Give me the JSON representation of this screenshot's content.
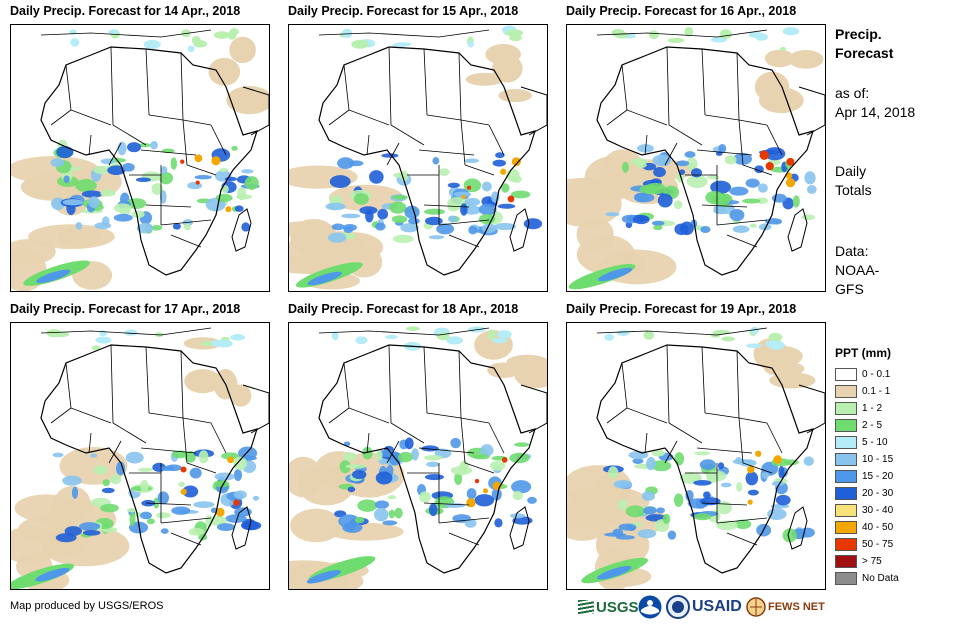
{
  "panels": [
    {
      "title": "Daily Precip. Forecast for 14 Apr., 2018"
    },
    {
      "title": "Daily Precip. Forecast for 15 Apr., 2018"
    },
    {
      "title": "Daily Precip. Forecast for 16 Apr., 2018"
    },
    {
      "title": "Daily Precip. Forecast for 17 Apr., 2018"
    },
    {
      "title": "Daily Precip. Forecast for 18 Apr., 2018"
    },
    {
      "title": "Daily Precip. Forecast for 19 Apr., 2018"
    }
  ],
  "side": {
    "heading_line1": "Precip.",
    "heading_line2": "Forecast",
    "asof_label": "as of:",
    "asof_date": "Apr 14, 2018",
    "totals_line1": "Daily",
    "totals_line2": "Totals",
    "data_label": "Data:",
    "data_line1": "NOAA-",
    "data_line2": "GFS"
  },
  "legend": {
    "title": "PPT (mm)",
    "items": [
      {
        "label": "0 - 0.1",
        "color": "#ffffff"
      },
      {
        "label": "0.1 - 1",
        "color": "#e8d3b0"
      },
      {
        "label": "1 - 2",
        "color": "#b9f0b0"
      },
      {
        "label": "2 - 5",
        "color": "#6fdc6f"
      },
      {
        "label": "5 - 10",
        "color": "#b4ecf7"
      },
      {
        "label": "10 - 15",
        "color": "#88c4ee"
      },
      {
        "label": "15 - 20",
        "color": "#4f97e8"
      },
      {
        "label": "20 - 30",
        "color": "#1f5fd8"
      },
      {
        "label": "30 - 40",
        "color": "#f7e27a"
      },
      {
        "label": "40 - 50",
        "color": "#f2a800"
      },
      {
        "label": "50 - 75",
        "color": "#e83800"
      },
      {
        "label": "> 75",
        "color": "#a01010"
      },
      {
        "label": "No Data",
        "color": "#8c8c8c"
      }
    ]
  },
  "footer": {
    "credit": "Map produced by USGS/EROS"
  },
  "logos": {
    "usgs": "USGS",
    "usaid": "USAID",
    "fewsnet": "FEWS NET"
  }
}
